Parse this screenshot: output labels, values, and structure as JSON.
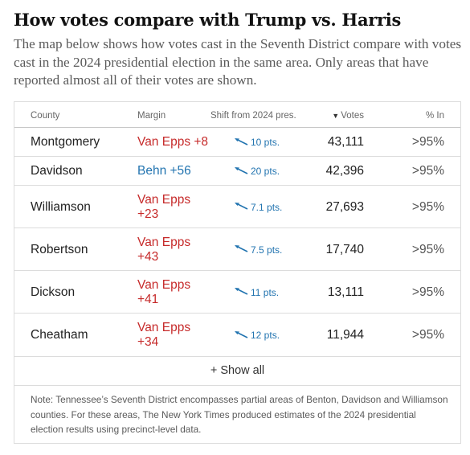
{
  "headline": "How votes compare with Trump vs. Harris",
  "dek": "The map below shows how votes cast in the Seventh District compare with votes cast in the 2024 presidential election in the same area. Only areas that have reported almost all of their votes are shown.",
  "table": {
    "headers": {
      "county": "County",
      "margin": "Margin",
      "shift": "Shift from 2024 pres.",
      "votes_sort_icon": "▼",
      "votes": "Votes",
      "pct": "% In"
    },
    "rows": [
      {
        "county": "Montgomery",
        "margin_line1": "Van Epps +8",
        "margin_line2": "",
        "party": "rep",
        "shift": "10 pts.",
        "votes": "43,111",
        "pct": ">95%"
      },
      {
        "county": "Davidson",
        "margin_line1": "Behn +56",
        "margin_line2": "",
        "party": "dem",
        "shift": "20 pts.",
        "votes": "42,396",
        "pct": ">95%"
      },
      {
        "county": "Williamson",
        "margin_line1": "Van Epps",
        "margin_line2": "+23",
        "party": "rep",
        "shift": "7.1 pts.",
        "votes": "27,693",
        "pct": ">95%"
      },
      {
        "county": "Robertson",
        "margin_line1": "Van Epps",
        "margin_line2": "+43",
        "party": "rep",
        "shift": "7.5 pts.",
        "votes": "17,740",
        "pct": ">95%"
      },
      {
        "county": "Dickson",
        "margin_line1": "Van Epps",
        "margin_line2": "+41",
        "party": "rep",
        "shift": "11 pts.",
        "votes": "13,111",
        "pct": ">95%"
      },
      {
        "county": "Cheatham",
        "margin_line1": "Van Epps",
        "margin_line2": "+34",
        "party": "rep",
        "shift": "12 pts.",
        "votes": "11,944",
        "pct": ">95%"
      }
    ],
    "show_all": "+ Show all",
    "note": "Note: Tennessee’s Seventh District encompasses partial areas of Benton, Davidson and Williamson counties. For these areas, The New York Times produced estimates of the 2024 presidential election results using precinct-level data."
  },
  "colors": {
    "republican": "#c62a2a",
    "democrat": "#2274b0",
    "shift_arrow": "#2274b0"
  },
  "icons": {
    "shift_arrow": "arrow-up-left-icon"
  }
}
